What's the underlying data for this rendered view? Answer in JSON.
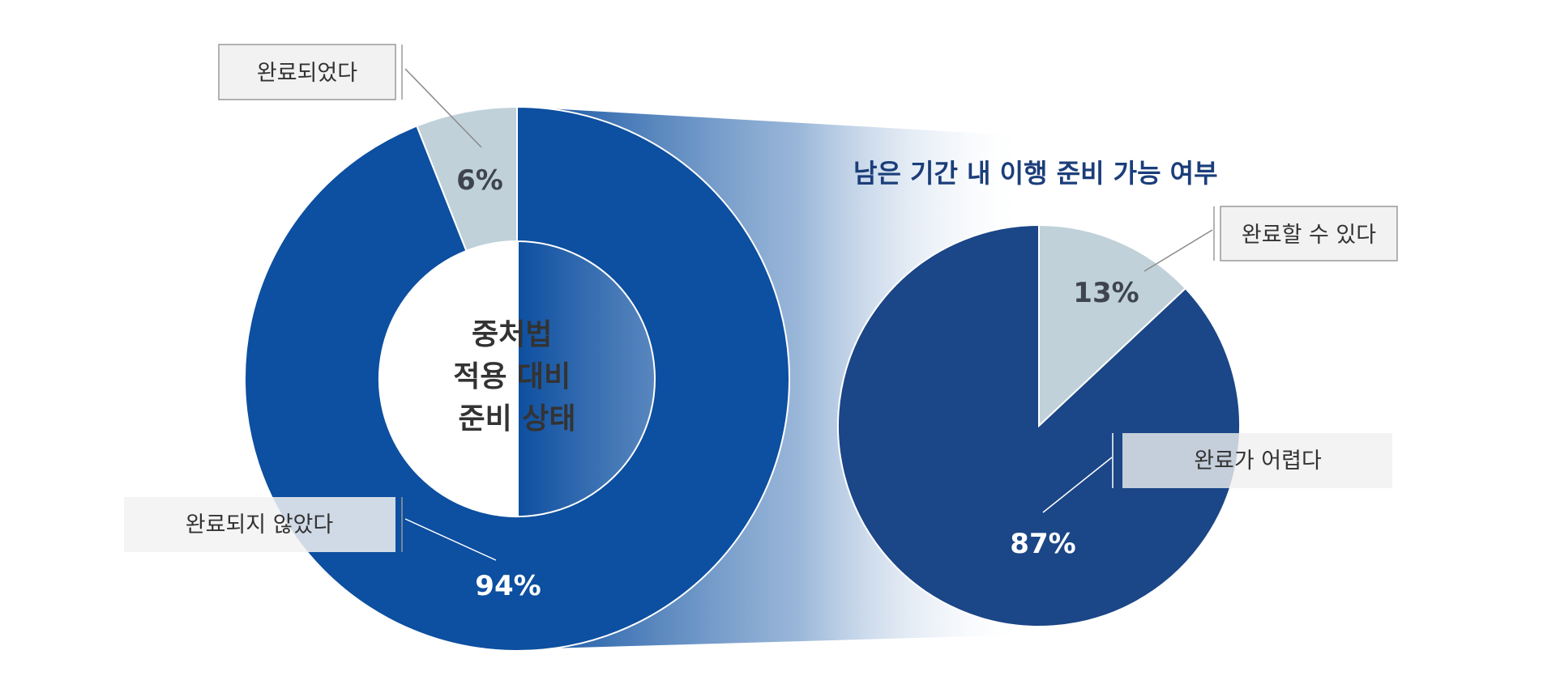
{
  "colors": {
    "primary": "#0D4FA0",
    "secondary": "#1B4687",
    "light": "#C0D1D9",
    "title": "#1B3E7A",
    "pct_dark": "#3F4451",
    "pct_light": "#FFFFFF"
  },
  "chart_data": [
    {
      "type": "pie",
      "variant": "donut",
      "center_label": [
        "중처법",
        "적용 대비",
        "준비 상태"
      ],
      "slices": [
        {
          "label": "완료되었다",
          "value": 6,
          "value_label": "6%",
          "color": "#C0D1D9"
        },
        {
          "label": "완료되지 않았다",
          "value": 94,
          "value_label": "94%",
          "color": "#0D4FA0"
        }
      ]
    },
    {
      "type": "pie",
      "title": "남은 기간 내 이행 준비 가능 여부",
      "slices": [
        {
          "label": "완료할 수 있다",
          "value": 13,
          "value_label": "13%",
          "color": "#C0D1D9"
        },
        {
          "label": "완료가 어렵다",
          "value": 87,
          "value_label": "87%",
          "color": "#1B4687"
        }
      ]
    }
  ]
}
